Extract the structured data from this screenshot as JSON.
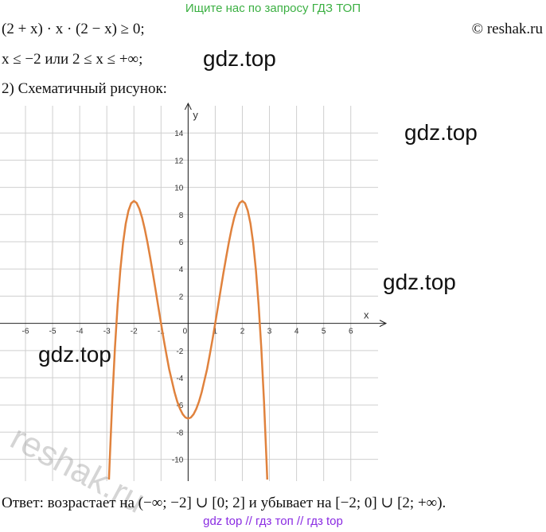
{
  "banner": "Ищите нас по запросу ГДЗ ТОП",
  "copyright": "© reshak.ru",
  "lines": [
    "(2 + x) · x · (2 − x) ≥ 0;",
    "x ≤ −2 или 2 ≤ x ≤ +∞;",
    "2) Схематичный рисунок:"
  ],
  "watermarks": [
    "gdz.top",
    "gdz.top",
    "gdz.top",
    "gdz.top",
    "reshak.ru"
  ],
  "chart_data": {
    "type": "line",
    "x_label": "x",
    "y_label": "y",
    "color": "#e0823d",
    "grid": true,
    "xlim": [
      -6.94,
      7.3
    ],
    "ylim": [
      -11.6,
      16
    ],
    "xticks": [
      -6,
      -5,
      -4,
      -3,
      -2,
      -1,
      0,
      1,
      2,
      3,
      4,
      5,
      6
    ],
    "yticks": [
      -10,
      -8,
      -6,
      -4,
      -2,
      2,
      4,
      6,
      8,
      10,
      12,
      14
    ],
    "x": [
      -2.92,
      -2.9,
      -2.8,
      -2.7,
      -2.6,
      -2.5,
      -2.4,
      -2.3,
      -2.2,
      -2.1,
      -2.0,
      -1.9,
      -1.8,
      -1.7,
      -1.6,
      -1.5,
      -1.4,
      -1.3,
      -1.2,
      -1.1,
      -1.0,
      -0.9,
      -0.8,
      -0.7,
      -0.6,
      -0.5,
      -0.4,
      -0.3,
      -0.2,
      -0.1,
      0,
      0.1,
      0.2,
      0.3,
      0.4,
      0.5,
      0.6,
      0.7,
      0.8,
      0.9,
      1.0,
      1.1,
      1.2,
      1.3,
      1.4,
      1.5,
      1.6,
      1.7,
      1.8,
      1.9,
      2.0,
      2.1,
      2.2,
      2.3,
      2.4,
      2.5,
      2.6,
      2.7,
      2.8,
      2.9,
      2.92
    ],
    "y": [
      -11.49,
      -10.45,
      -5.75,
      -1.82,
      1.38,
      3.94,
      5.9,
      7.34,
      8.29,
      8.83,
      9,
      8.85,
      8.42,
      7.77,
      6.93,
      5.94,
      4.84,
      3.66,
      2.45,
      1.22,
      0,
      -1.18,
      -2.29,
      -3.36,
      -4.21,
      -5.06,
      -5.75,
      -6.29,
      -6.68,
      -6.92,
      -7,
      -6.92,
      -6.68,
      -6.29,
      -5.75,
      -5.06,
      -4.21,
      -3.36,
      -2.29,
      -1.18,
      0,
      1.22,
      2.45,
      3.66,
      4.84,
      5.94,
      6.93,
      7.77,
      8.42,
      8.85,
      9,
      8.83,
      8.29,
      7.34,
      5.9,
      3.94,
      1.38,
      -1.82,
      -5.75,
      -10.45,
      -11.49
    ]
  },
  "answer": "Ответ:  возрастает на (−∞;  −2] ∪ [0;  2] и убывает на [−2;  0] ∪ [2;  +∞).",
  "footer": "gdz top  //  гдз топ  //  гдз top"
}
